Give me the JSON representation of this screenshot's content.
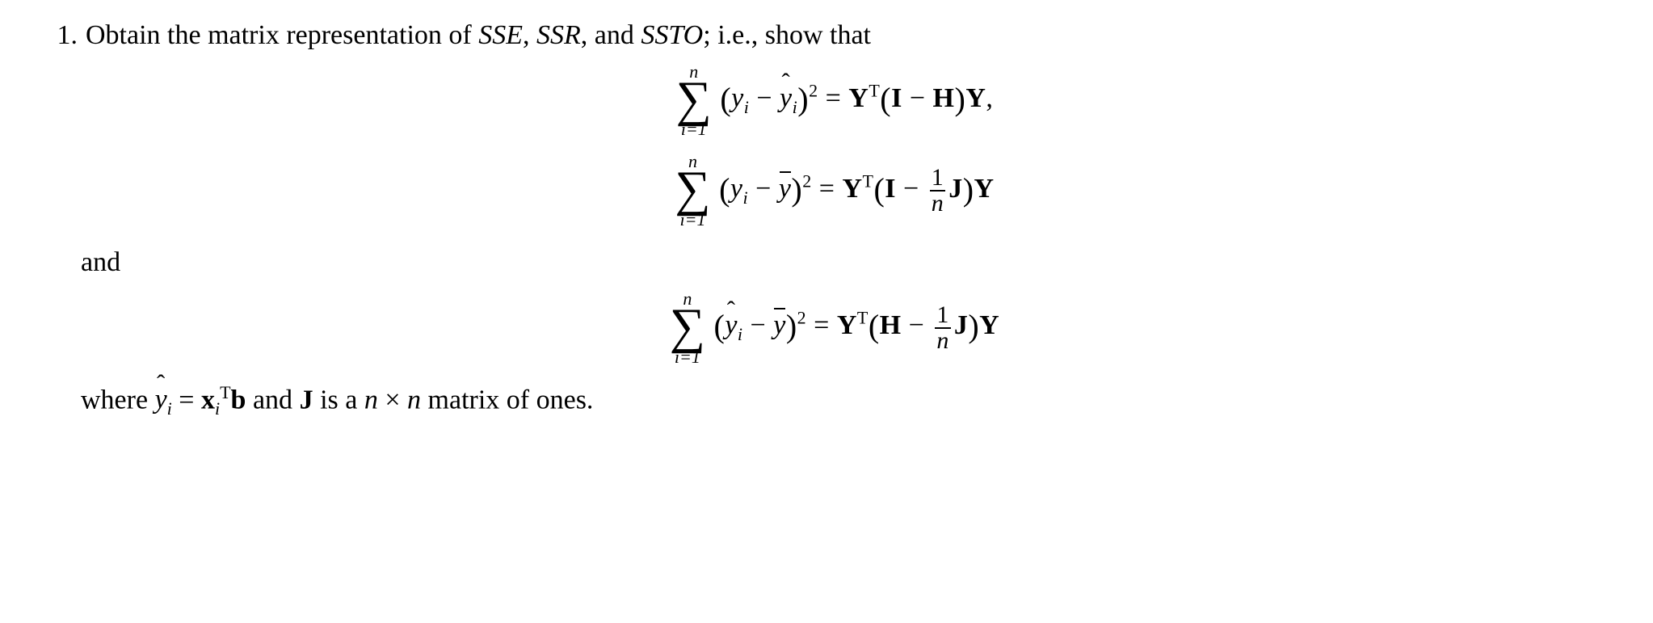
{
  "item_number": "1.",
  "prompt_before_italic": "Obtain the matrix representation of ",
  "terms_sse": "SSE",
  "comma1": ", ",
  "terms_ssr": "SSR",
  "comma2": ", and ",
  "terms_ssto": "SSTO",
  "prompt_after": "; i.e., show that",
  "sum_upper": "n",
  "sum_lower": "i=1",
  "y": "y",
  "yhat": "y",
  "ybar": "y",
  "sub_i": "i",
  "sq": "2",
  "eq": " = ",
  "minus": " − ",
  "Y": "Y",
  "T": "T",
  "I": "I",
  "H": "H",
  "J": "J",
  "one": "1",
  "n": "n",
  "trail_comma": ",",
  "and_text": "and",
  "where_before": "where ",
  "where_eq": " = ",
  "x": "x",
  "b": "b",
  "where_mid": " and ",
  "Jbold": "J",
  "where_tail1": " is a ",
  "where_tail2": " × ",
  "where_tail3": " matrix of ones."
}
